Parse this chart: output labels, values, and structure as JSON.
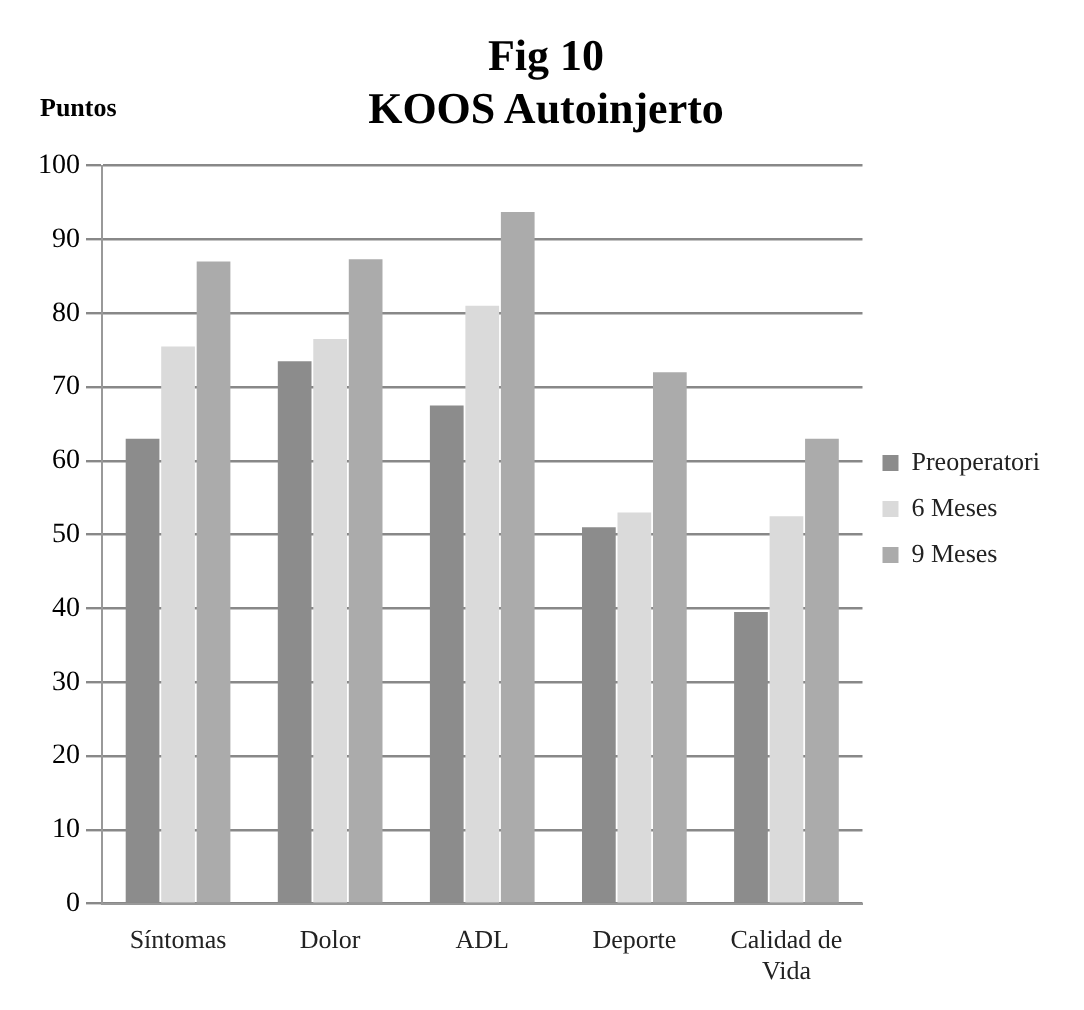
{
  "chart_data": {
    "type": "bar",
    "title": "Fig 10",
    "subtitle": "KOOS Autoinjerto",
    "ylabel": "Puntos",
    "categories": [
      "Síntomas",
      "Dolor",
      "ADL",
      "Deporte",
      "Calidad de Vida"
    ],
    "series": [
      {
        "name": "Preoperatori",
        "color": "#8c8c8c",
        "values": [
          63,
          73.5,
          67.5,
          51,
          39.5
        ]
      },
      {
        "name": "6 Meses",
        "color": "#dadada",
        "values": [
          75.5,
          76.5,
          81,
          53,
          52.5
        ]
      },
      {
        "name": "9 Meses",
        "color": "#ababab",
        "values": [
          87,
          87.3,
          93.7,
          72,
          63
        ]
      }
    ],
    "ylim": [
      0,
      100
    ],
    "yticks": [
      0,
      10,
      20,
      30,
      40,
      50,
      60,
      70,
      80,
      90,
      100
    ],
    "grid": "y",
    "legend": "right"
  }
}
